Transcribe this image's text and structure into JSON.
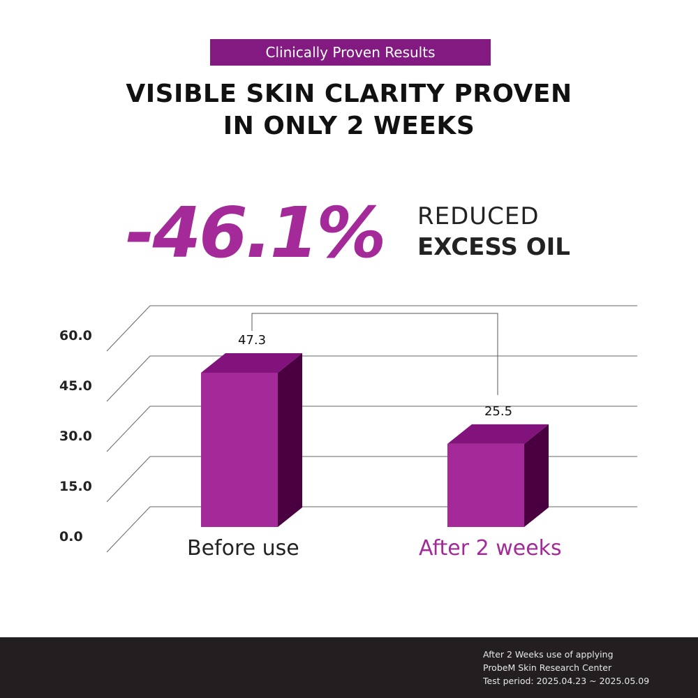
{
  "badge": "Clinically Proven Results",
  "title_lines": [
    "VISIBLE SKIN CLARITY PROVEN",
    "IN ONLY 2 WEEKS"
  ],
  "headline": {
    "value": "-46.1%",
    "line1": "REDUCED",
    "line2": "EXCESS OIL"
  },
  "colors": {
    "accent": "#a32a98",
    "top": "#82137c",
    "side": "#4a0040",
    "badge": "#831a82"
  },
  "chart_data": {
    "type": "bar",
    "style": "3d",
    "categories": [
      "Before use",
      "After 2 weeks"
    ],
    "values": [
      47.3,
      25.5
    ],
    "data_labels": [
      "47.3",
      "25.5"
    ],
    "ylim": [
      0,
      60
    ],
    "yticks": [
      "0.0",
      "15.0",
      "30.0",
      "45.0",
      "60.0"
    ],
    "grid": true
  },
  "footer": {
    "lines": [
      "After 2 Weeks use of applying",
      "ProbeM Skin Research Center",
      "Test period: 2025.04.23 ~ 2025.05.09"
    ]
  }
}
